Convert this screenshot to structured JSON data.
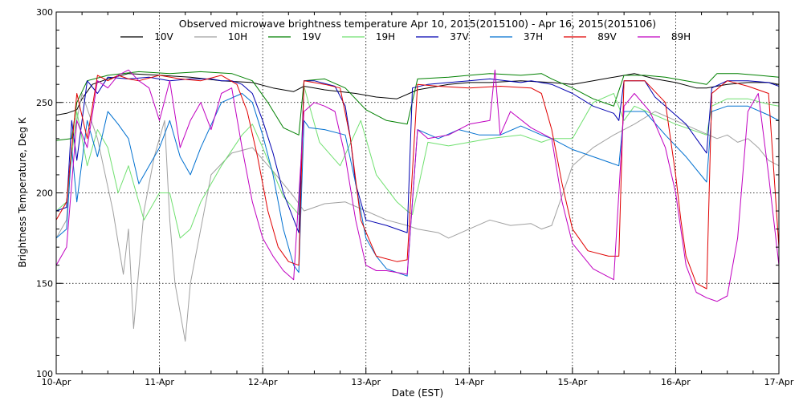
{
  "chart_data": {
    "type": "line",
    "title": "Observed microwave brightness temperature Apr 10, 2015(2015100) - Apr 16, 2015(2015106)",
    "xlabel": "Date (EST)",
    "ylabel": "Brightness Temperature, Deg K",
    "xlim": [
      "10-Apr",
      "17-Apr"
    ],
    "ylim": [
      100,
      300
    ],
    "x_ticks": [
      "10-Apr",
      "11-Apr",
      "12-Apr",
      "13-Apr",
      "14-Apr",
      "15-Apr",
      "16-Apr",
      "17-Apr"
    ],
    "y_ticks": [
      "100",
      "150",
      "200",
      "250",
      "300"
    ],
    "grid": true,
    "legend_position": "top",
    "series": [
      {
        "name": "10V",
        "color": "#000000",
        "x": [
          0,
          0.1,
          0.2,
          0.25,
          0.35,
          0.5,
          0.7,
          1.0,
          1.3,
          1.6,
          1.9,
          2.1,
          2.3,
          2.4,
          2.6,
          2.9,
          3.1,
          3.3,
          3.5,
          3.8,
          4.0,
          4.2,
          4.5,
          4.8,
          5.0,
          5.2,
          5.4,
          5.6,
          5.8,
          6.0,
          6.2,
          6.3,
          6.5,
          6.7,
          6.9,
          7.0
        ],
        "values": [
          243,
          244,
          246,
          252,
          260,
          263,
          266,
          265,
          264,
          262,
          261,
          258,
          256,
          259,
          257,
          255,
          253,
          252,
          257,
          260,
          261,
          261,
          262,
          261,
          260,
          262,
          264,
          266,
          263,
          261,
          258,
          258,
          260,
          261,
          261,
          260
        ]
      },
      {
        "name": "10H",
        "color": "#a0a0a0",
        "x": [
          0,
          0.1,
          0.15,
          0.25,
          0.4,
          0.55,
          0.65,
          0.7,
          0.75,
          0.85,
          0.95,
          1.05,
          1.1,
          1.15,
          1.25,
          1.3,
          1.5,
          1.7,
          1.9,
          2.1,
          2.3,
          2.4,
          2.6,
          2.8,
          3.0,
          3.2,
          3.4,
          3.5,
          3.7,
          3.8,
          4.0,
          4.2,
          4.4,
          4.6,
          4.7,
          4.8,
          5.0,
          5.2,
          5.4,
          5.6,
          5.8,
          6.0,
          6.2,
          6.4,
          6.5,
          6.6,
          6.7,
          6.8,
          6.9,
          7.0
        ],
        "values": [
          175,
          185,
          225,
          255,
          230,
          190,
          155,
          180,
          125,
          190,
          220,
          240,
          185,
          150,
          118,
          150,
          210,
          222,
          225,
          212,
          198,
          190,
          194,
          195,
          190,
          185,
          182,
          180,
          178,
          175,
          180,
          185,
          182,
          183,
          180,
          182,
          215,
          225,
          232,
          238,
          245,
          240,
          235,
          230,
          232,
          228,
          230,
          225,
          218,
          215
        ]
      },
      {
        "name": "19V",
        "color": "#008000",
        "x": [
          0,
          0.15,
          0.2,
          0.3,
          0.5,
          0.8,
          1.1,
          1.4,
          1.7,
          1.9,
          2.05,
          2.2,
          2.35,
          2.4,
          2.6,
          2.8,
          3.0,
          3.2,
          3.4,
          3.5,
          3.8,
          4.0,
          4.2,
          4.5,
          4.7,
          4.8,
          5.0,
          5.2,
          5.4,
          5.5,
          5.7,
          5.9,
          6.1,
          6.3,
          6.4,
          6.6,
          6.8,
          7.0
        ],
        "values": [
          229,
          230,
          250,
          262,
          265,
          267,
          266,
          267,
          266,
          262,
          250,
          236,
          232,
          262,
          263,
          258,
          246,
          240,
          238,
          263,
          264,
          265,
          266,
          265,
          266,
          263,
          258,
          252,
          248,
          265,
          265,
          264,
          262,
          260,
          266,
          266,
          265,
          264
        ]
      },
      {
        "name": "19H",
        "color": "#70e070",
        "x": [
          0,
          0.1,
          0.2,
          0.3,
          0.4,
          0.5,
          0.6,
          0.7,
          0.85,
          1.0,
          1.1,
          1.2,
          1.3,
          1.4,
          1.6,
          1.8,
          1.9,
          2.0,
          2.2,
          2.35,
          2.4,
          2.55,
          2.75,
          2.95,
          3.1,
          3.3,
          3.4,
          3.45,
          3.6,
          3.8,
          4.0,
          4.2,
          4.5,
          4.7,
          4.8,
          5.0,
          5.2,
          5.4,
          5.5,
          5.6,
          5.8,
          6.0,
          6.2,
          6.3,
          6.35,
          6.5,
          6.7,
          6.9,
          7.0
        ],
        "values": [
          190,
          195,
          245,
          215,
          235,
          225,
          200,
          215,
          185,
          200,
          200,
          175,
          180,
          195,
          215,
          232,
          238,
          225,
          198,
          188,
          259,
          228,
          215,
          240,
          210,
          195,
          190,
          188,
          228,
          226,
          228,
          230,
          232,
          228,
          230,
          230,
          250,
          255,
          240,
          248,
          243,
          238,
          234,
          232,
          248,
          252,
          252,
          249,
          248
        ]
      },
      {
        "name": "37V",
        "color": "#0000b0",
        "x": [
          0,
          0.1,
          0.15,
          0.2,
          0.3,
          0.4,
          0.5,
          0.7,
          0.9,
          1.1,
          1.3,
          1.5,
          1.6,
          1.7,
          1.8,
          1.9,
          2.0,
          2.1,
          2.2,
          2.35,
          2.4,
          2.5,
          2.7,
          2.8,
          2.85,
          2.9,
          3.0,
          3.2,
          3.4,
          3.45,
          3.6,
          3.8,
          4.0,
          4.2,
          4.5,
          4.6,
          4.8,
          5.0,
          5.2,
          5.4,
          5.45,
          5.5,
          5.7,
          5.8,
          5.9,
          6.0,
          6.1,
          6.3,
          6.35,
          6.5,
          6.7,
          6.9,
          7.0
        ],
        "values": [
          190,
          192,
          240,
          218,
          262,
          255,
          264,
          263,
          264,
          262,
          263,
          263,
          262,
          262,
          260,
          255,
          240,
          222,
          200,
          178,
          262,
          262,
          259,
          248,
          230,
          205,
          185,
          182,
          178,
          258,
          260,
          261,
          262,
          263,
          261,
          262,
          260,
          255,
          248,
          244,
          240,
          262,
          262,
          253,
          248,
          243,
          238,
          222,
          258,
          262,
          262,
          261,
          259
        ]
      },
      {
        "name": "37H",
        "color": "#0070d0",
        "x": [
          0,
          0.1,
          0.15,
          0.2,
          0.3,
          0.4,
          0.5,
          0.6,
          0.7,
          0.8,
          1.0,
          1.1,
          1.2,
          1.3,
          1.4,
          1.6,
          1.8,
          1.9,
          2.0,
          2.1,
          2.2,
          2.3,
          2.35,
          2.4,
          2.45,
          2.6,
          2.8,
          2.9,
          3.0,
          3.1,
          3.2,
          3.4,
          3.5,
          3.7,
          3.9,
          4.1,
          4.3,
          4.5,
          4.7,
          4.8,
          5.0,
          5.2,
          5.4,
          5.45,
          5.5,
          5.7,
          5.9,
          6.1,
          6.3,
          6.35,
          6.5,
          6.7,
          6.9,
          7.0
        ],
        "values": [
          175,
          180,
          225,
          195,
          240,
          220,
          245,
          238,
          230,
          205,
          225,
          240,
          220,
          210,
          225,
          250,
          255,
          250,
          232,
          210,
          180,
          160,
          156,
          240,
          236,
          235,
          232,
          205,
          175,
          165,
          158,
          154,
          235,
          230,
          235,
          232,
          232,
          237,
          232,
          230,
          224,
          220,
          216,
          215,
          245,
          245,
          232,
          220,
          206,
          245,
          248,
          248,
          243,
          240
        ]
      },
      {
        "name": "89V",
        "color": "#e00000",
        "x": [
          0,
          0.1,
          0.2,
          0.3,
          0.4,
          0.5,
          0.6,
          0.7,
          0.8,
          1.0,
          1.2,
          1.4,
          1.6,
          1.75,
          1.85,
          1.95,
          2.05,
          2.15,
          2.25,
          2.35,
          2.4,
          2.6,
          2.75,
          2.85,
          2.95,
          3.1,
          3.3,
          3.4,
          3.5,
          3.7,
          4.0,
          4.3,
          4.6,
          4.7,
          4.8,
          4.9,
          5.0,
          5.15,
          5.35,
          5.45,
          5.5,
          5.7,
          5.9,
          6.0,
          6.05,
          6.1,
          6.2,
          6.3,
          6.35,
          6.5,
          6.7,
          6.9,
          7.0
        ],
        "values": [
          185,
          195,
          255,
          230,
          265,
          262,
          265,
          263,
          262,
          265,
          263,
          262,
          265,
          260,
          245,
          220,
          190,
          170,
          162,
          160,
          262,
          260,
          258,
          230,
          185,
          165,
          162,
          163,
          260,
          259,
          258,
          259,
          258,
          255,
          235,
          205,
          180,
          168,
          165,
          165,
          262,
          262,
          250,
          210,
          185,
          165,
          150,
          147,
          255,
          262,
          259,
          255,
          170
        ]
      },
      {
        "name": "89H",
        "color": "#c000c0",
        "x": [
          0,
          0.1,
          0.2,
          0.3,
          0.4,
          0.5,
          0.6,
          0.7,
          0.8,
          0.9,
          1.0,
          1.1,
          1.2,
          1.3,
          1.4,
          1.5,
          1.6,
          1.7,
          1.8,
          1.9,
          2.0,
          2.1,
          2.2,
          2.3,
          2.4,
          2.5,
          2.6,
          2.7,
          2.8,
          2.9,
          3.0,
          3.1,
          3.2,
          3.3,
          3.4,
          3.5,
          3.6,
          3.8,
          4.0,
          4.2,
          4.25,
          4.3,
          4.4,
          4.6,
          4.8,
          4.9,
          5.0,
          5.2,
          5.4,
          5.5,
          5.6,
          5.75,
          5.9,
          6.0,
          6.1,
          6.2,
          6.3,
          6.4,
          6.5,
          6.6,
          6.7,
          6.8,
          6.9,
          7.0
        ],
        "values": [
          160,
          170,
          240,
          225,
          262,
          258,
          265,
          268,
          262,
          258,
          240,
          262,
          225,
          240,
          250,
          235,
          255,
          258,
          225,
          195,
          175,
          165,
          157,
          152,
          245,
          250,
          248,
          245,
          220,
          185,
          160,
          157,
          157,
          156,
          155,
          235,
          230,
          232,
          238,
          240,
          268,
          232,
          245,
          236,
          230,
          195,
          172,
          158,
          152,
          248,
          255,
          245,
          225,
          200,
          160,
          145,
          142,
          140,
          143,
          175,
          245,
          255,
          210,
          160
        ]
      }
    ]
  }
}
